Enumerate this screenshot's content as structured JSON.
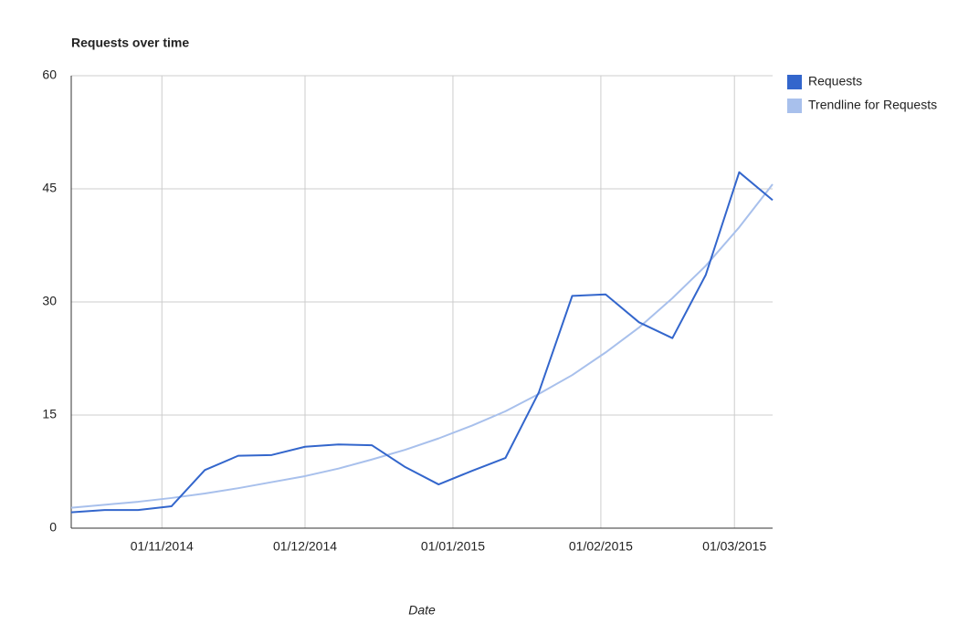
{
  "chart_data": {
    "type": "line",
    "title": "Requests over time",
    "x_label": "Date",
    "x": [
      "2014-10-13",
      "2014-10-20",
      "2014-10-27",
      "2014-11-03",
      "2014-11-10",
      "2014-11-17",
      "2014-11-24",
      "2014-12-01",
      "2014-12-08",
      "2014-12-15",
      "2014-12-22",
      "2014-12-29",
      "2015-01-05",
      "2015-01-12",
      "2015-01-19",
      "2015-01-26",
      "2015-02-02",
      "2015-02-09",
      "2015-02-16",
      "2015-02-23",
      "2015-03-02",
      "2015-03-09"
    ],
    "series": [
      {
        "name": "Requests",
        "color": "#3366cc",
        "values": [
          2.1,
          2.4,
          2.4,
          2.9,
          7.7,
          9.6,
          9.7,
          10.8,
          11.1,
          11.0,
          8.1,
          5.8,
          7.6,
          9.3,
          18.0,
          30.8,
          31.0,
          27.3,
          25.2,
          33.6,
          47.2,
          43.5
        ]
      },
      {
        "name": "Trendline for Requests",
        "color": "#a8c0ec",
        "values": [
          2.7,
          3.1,
          3.5,
          4.0,
          4.6,
          5.3,
          6.1,
          6.9,
          7.9,
          9.1,
          10.4,
          11.9,
          13.6,
          15.5,
          17.8,
          20.3,
          23.3,
          26.6,
          30.5,
          34.8,
          39.9,
          45.6
        ]
      }
    ],
    "xlim": [
      "2014-10-13",
      "2015-03-09"
    ],
    "xticks": [
      {
        "value": "2014-11-01",
        "label": "01/11/2014"
      },
      {
        "value": "2014-12-01",
        "label": "01/12/2014"
      },
      {
        "value": "2015-01-01",
        "label": "01/01/2015"
      },
      {
        "value": "2015-02-01",
        "label": "01/02/2015"
      },
      {
        "value": "2015-03-01",
        "label": "01/03/2015"
      }
    ],
    "ylim": [
      0,
      60
    ],
    "yticks": [
      0,
      15,
      30,
      45,
      60
    ],
    "grid": true,
    "legend": "right"
  }
}
